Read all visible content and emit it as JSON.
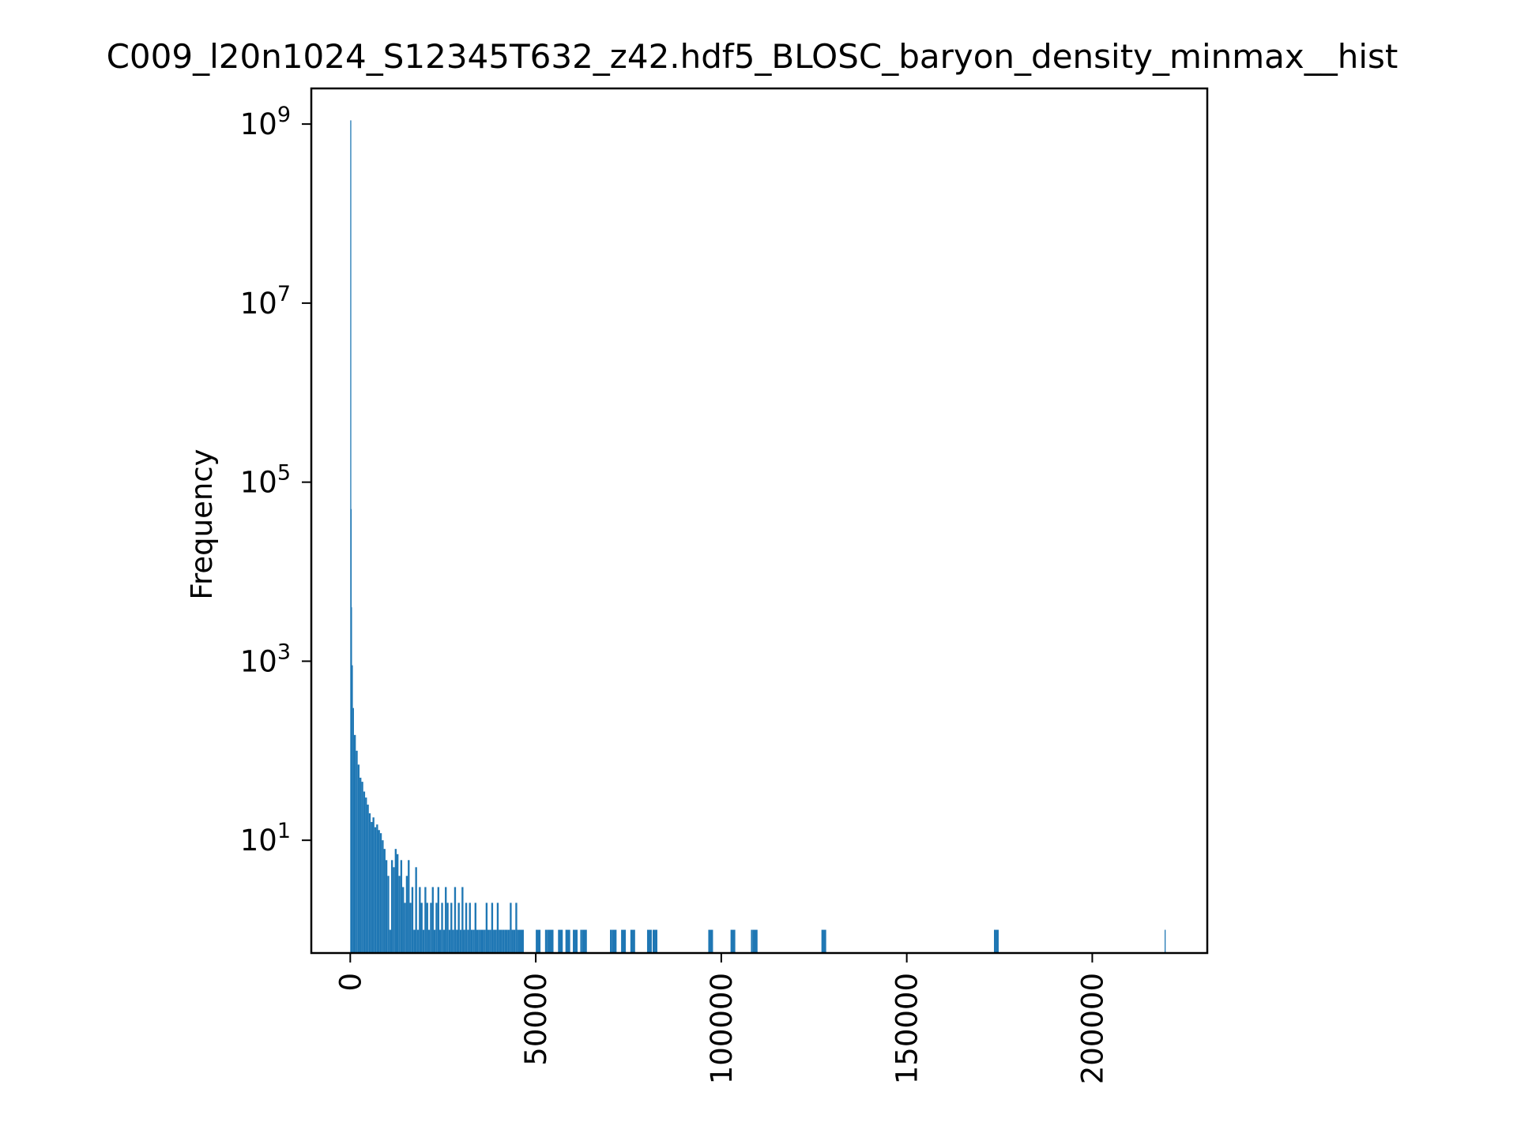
{
  "chart_data": {
    "type": "bar",
    "title": "C009_l20n1024_S12345T632_z42.hdf5_BLOSC_baryon_density_minmax__hist",
    "xlabel": "",
    "ylabel": "Frequency",
    "y_scale": "log",
    "grid": false,
    "color": "#1f77b4",
    "xlim": [
      -10500,
      231000
    ],
    "ylim": [
      0.55,
      2500000000
    ],
    "x_ticks": [
      0,
      50000,
      100000,
      150000,
      200000
    ],
    "x_tick_labels": [
      "0",
      "50000",
      "100000",
      "150000",
      "200000"
    ],
    "y_ticks": [
      10,
      1000,
      100000,
      10000000,
      1000000000
    ],
    "y_tick_labels": [
      {
        "base": "10",
        "exp": "1"
      },
      {
        "base": "10",
        "exp": "3"
      },
      {
        "base": "10",
        "exp": "5"
      },
      {
        "base": "10",
        "exp": "7"
      },
      {
        "base": "10",
        "exp": "9"
      }
    ],
    "bins": {
      "x": [
        0,
        100,
        200,
        400,
        700,
        1000,
        1500,
        2000,
        2500,
        3000,
        3500,
        4000,
        4500,
        5000,
        5500,
        6000,
        6500,
        7000,
        7500,
        8000,
        8500,
        9000,
        9500,
        10000,
        10500,
        11000,
        11500,
        12000,
        12500,
        13000,
        13500,
        14000,
        14500,
        15000,
        15500,
        16000,
        16500,
        17000,
        17500,
        18000,
        18500,
        19000,
        19500,
        20000,
        20500,
        21000,
        21500,
        22000,
        22500,
        23000,
        23500,
        24000,
        24500,
        25000,
        25500,
        26000,
        26500,
        27000,
        27500,
        28000,
        28500,
        29000,
        29500,
        30000,
        30500,
        31000,
        31500,
        32000,
        32500,
        33000,
        33500,
        34000,
        34500,
        35000,
        35500,
        36000,
        36500,
        37000,
        37500,
        38000,
        38500,
        39000,
        39500,
        40000,
        40500,
        41000,
        41500,
        42000,
        42500,
        43000,
        43500,
        44000,
        44500,
        45000,
        45500,
        50000,
        52500,
        53000,
        53500,
        56000,
        58000,
        60000,
        62000,
        62500,
        70000,
        70500,
        73000,
        75500,
        80000,
        81500,
        96500,
        102500,
        108000,
        108500,
        127000,
        173500,
        219500
      ],
      "counts": [
        1100000000,
        50000,
        4000,
        900,
        300,
        150,
        100,
        70,
        50,
        45,
        35,
        30,
        25,
        20,
        16,
        18,
        14,
        15,
        13,
        12,
        10,
        8,
        6,
        4,
        1,
        6,
        5,
        8,
        7,
        4,
        6,
        3,
        2,
        4,
        6,
        2,
        3,
        1,
        5,
        1,
        3,
        2,
        1,
        3,
        2,
        1,
        2,
        3,
        1,
        2,
        3,
        1,
        2,
        1,
        3,
        2,
        1,
        2,
        1,
        3,
        1,
        2,
        1,
        3,
        1,
        2,
        1,
        2,
        1,
        1,
        2,
        1,
        1,
        1,
        1,
        1,
        2,
        1,
        1,
        2,
        1,
        1,
        2,
        1,
        1,
        1,
        1,
        1,
        1,
        2,
        1,
        1,
        2,
        1,
        1,
        1,
        1,
        1,
        1,
        1,
        1,
        1,
        1,
        1,
        1,
        1,
        1,
        1,
        1,
        1,
        1,
        1,
        1,
        1,
        1,
        1,
        1
      ]
    }
  }
}
